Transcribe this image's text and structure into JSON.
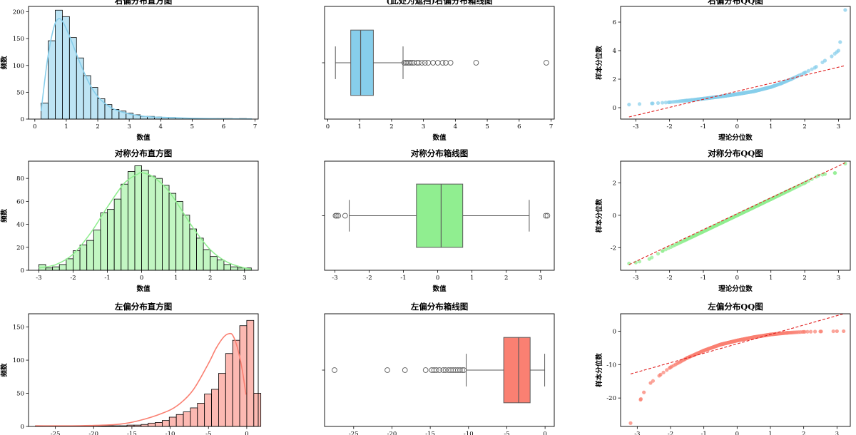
{
  "chart_data": [
    {
      "type": "histogram",
      "title": "右偏分布直方图",
      "xlabel": "数值",
      "ylabel": "频数",
      "xlim": [
        -0.2,
        7.1
      ],
      "ylim": [
        0,
        210
      ],
      "xticks": [
        0,
        1,
        2,
        3,
        4,
        5,
        6,
        7
      ],
      "yticks": [
        0,
        50,
        100,
        150,
        200
      ],
      "bin_start": 0.2,
      "bin_width": 0.225,
      "counts": [
        30,
        146,
        203,
        191,
        152,
        114,
        81,
        59,
        38,
        27,
        18,
        15,
        11,
        8,
        5,
        5,
        4,
        3,
        3,
        2,
        2,
        1,
        1,
        1,
        1,
        1,
        1,
        0,
        1,
        0
      ],
      "kde": [
        [
          0.2,
          15
        ],
        [
          0.4,
          110
        ],
        [
          0.6,
          170
        ],
        [
          0.75,
          187
        ],
        [
          0.9,
          180
        ],
        [
          1.1,
          155
        ],
        [
          1.4,
          110
        ],
        [
          1.7,
          70
        ],
        [
          2.0,
          42
        ],
        [
          2.4,
          22
        ],
        [
          2.9,
          11
        ],
        [
          3.5,
          5
        ],
        [
          4.2,
          3
        ],
        [
          5.0,
          1.5
        ],
        [
          6.0,
          0.5
        ],
        [
          6.9,
          0.3
        ]
      ],
      "color": "#87ceeb"
    },
    {
      "type": "boxplot",
      "title": "(此处为遮挡)右偏分布箱线图",
      "xlabel": "数值",
      "xlim": [
        -0.1,
        7.1
      ],
      "xticks": [
        0,
        1,
        2,
        3,
        4,
        5,
        6,
        7
      ],
      "whisker_low": 0.24,
      "q1": 0.72,
      "median": 1.03,
      "q3": 1.43,
      "whisker_high": 2.36,
      "outliers": [
        2.4,
        2.45,
        2.5,
        2.55,
        2.6,
        2.65,
        2.7,
        2.8,
        2.85,
        2.95,
        3.05,
        3.15,
        3.3,
        3.45,
        3.6,
        3.7,
        3.85,
        4.65,
        6.85
      ],
      "color": "#87ceeb"
    },
    {
      "type": "scatter",
      "title": "右偏分布QQ图",
      "xlabel": "理论分位数",
      "ylabel": "样本分位数",
      "xlim": [
        -3.45,
        3.35
      ],
      "ylim": [
        -0.8,
        7.1
      ],
      "xticks": [
        -3,
        -2,
        -1,
        0,
        1,
        2,
        3
      ],
      "yticks": [
        0,
        2,
        4,
        6
      ],
      "curve": [
        [
          -3.2,
          0.22
        ],
        [
          -2.5,
          0.3
        ],
        [
          -2.0,
          0.38
        ],
        [
          -1.5,
          0.5
        ],
        [
          -1.0,
          0.63
        ],
        [
          -0.5,
          0.78
        ],
        [
          0.0,
          0.95
        ],
        [
          0.5,
          1.15
        ],
        [
          1.0,
          1.45
        ],
        [
          1.3,
          1.7
        ],
        [
          1.6,
          2.0
        ],
        [
          2.0,
          2.45
        ],
        [
          2.3,
          2.8
        ],
        [
          2.6,
          3.3
        ],
        [
          2.8,
          3.6
        ],
        [
          2.95,
          3.9
        ],
        [
          3.0,
          4.0
        ],
        [
          3.05,
          4.6
        ],
        [
          3.2,
          6.85
        ]
      ],
      "reference_line": [
        [
          -3.2,
          -0.65
        ],
        [
          3.2,
          2.95
        ]
      ],
      "color": "#87ceeb"
    },
    {
      "type": "histogram",
      "title": "对称分布直方图",
      "xlabel": "数值",
      "ylabel": "频数",
      "xlim": [
        -3.3,
        3.4
      ],
      "ylim": [
        0,
        95
      ],
      "xticks": [
        -3,
        -2,
        -1,
        0,
        1,
        2,
        3
      ],
      "yticks": [
        0,
        20,
        40,
        60,
        80
      ],
      "bin_start": -3.0,
      "bin_width": 0.2,
      "counts": [
        5,
        2,
        3,
        5,
        10,
        17,
        22,
        26,
        35,
        50,
        53,
        62,
        75,
        86,
        91,
        87,
        82,
        80,
        74,
        67,
        60,
        48,
        36,
        28,
        18,
        12,
        9,
        5,
        3,
        2,
        2
      ],
      "kde": [
        [
          -3.0,
          2
        ],
        [
          -2.5,
          5
        ],
        [
          -2.0,
          14
        ],
        [
          -1.5,
          32
        ],
        [
          -1.0,
          55
        ],
        [
          -0.5,
          76
        ],
        [
          -0.1,
          84
        ],
        [
          0.0,
          85
        ],
        [
          0.3,
          82
        ],
        [
          0.7,
          72
        ],
        [
          1.0,
          60
        ],
        [
          1.5,
          37
        ],
        [
          2.0,
          18
        ],
        [
          2.5,
          7
        ],
        [
          3.0,
          2
        ],
        [
          3.2,
          1
        ]
      ],
      "color": "#90ee90"
    },
    {
      "type": "boxplot",
      "title": "对称分布箱线图",
      "xlabel": "数值",
      "xlim": [
        -3.3,
        3.4
      ],
      "xticks": [
        -3,
        -2,
        -1,
        0,
        1,
        2,
        3
      ],
      "whisker_low": -2.58,
      "q1": -0.62,
      "median": 0.1,
      "q3": 0.73,
      "whisker_high": 2.67,
      "outliers": [
        -2.98,
        -2.95,
        -2.9,
        -2.7,
        3.15,
        3.2
      ],
      "color": "#90ee90"
    },
    {
      "type": "scatter",
      "title": "对称分布QQ图",
      "xlabel": "理论分位数",
      "ylabel": "样本分位数",
      "xlim": [
        -3.45,
        3.35
      ],
      "ylim": [
        -3.4,
        3.35
      ],
      "xticks": [
        -3,
        -2,
        -1,
        0,
        1,
        2,
        3
      ],
      "yticks": [
        -2,
        0,
        2
      ],
      "curve": [
        [
          -3.2,
          -2.98
        ],
        [
          -3.0,
          -2.92
        ],
        [
          -2.6,
          -2.7
        ],
        [
          -2.2,
          -2.2
        ],
        [
          -1.5,
          -1.5
        ],
        [
          -1.0,
          -1.0
        ],
        [
          0.0,
          0.0
        ],
        [
          1.0,
          1.0
        ],
        [
          1.5,
          1.5
        ],
        [
          2.0,
          2.0
        ],
        [
          2.4,
          2.45
        ],
        [
          2.6,
          2.55
        ],
        [
          2.9,
          2.62
        ],
        [
          3.2,
          3.2
        ]
      ],
      "reference_line": [
        [
          -3.2,
          -3.05
        ],
        [
          3.2,
          3.25
        ]
      ],
      "color": "#90ee90"
    },
    {
      "type": "histogram",
      "title": "左偏分布直方图",
      "xlabel": "",
      "ylabel": "频数",
      "xlim": [
        -28.5,
        1.5
      ],
      "ylim": [
        0,
        170
      ],
      "xticks": [
        -25,
        -20,
        -15,
        -10,
        -5,
        0
      ],
      "yticks": [
        0,
        50,
        100,
        150
      ],
      "bin_start": -27.6,
      "bin_width": 0.92,
      "counts": [
        1,
        1,
        1,
        1,
        1,
        1,
        1,
        1,
        1,
        1,
        1,
        1,
        1,
        2,
        2,
        3,
        5,
        6,
        9,
        14,
        18,
        22,
        28,
        35,
        49,
        56,
        80,
        110,
        130,
        152,
        160,
        50
      ],
      "kde": [
        [
          -27.6,
          1
        ],
        [
          -22,
          1
        ],
        [
          -17,
          3
        ],
        [
          -14,
          9
        ],
        [
          -11,
          20
        ],
        [
          -9,
          32
        ],
        [
          -7,
          55
        ],
        [
          -5,
          95
        ],
        [
          -4,
          118
        ],
        [
          -3,
          135
        ],
        [
          -2.3,
          140
        ],
        [
          -1.8,
          137
        ],
        [
          -1.2,
          118
        ],
        [
          -0.6,
          86
        ],
        [
          -0.1,
          48
        ]
      ],
      "color": "#fa8072"
    },
    {
      "type": "boxplot",
      "title": "左偏分布箱线图",
      "xlabel": "",
      "xlim": [
        -28.8,
        1.2
      ],
      "xticks": [
        -25,
        -20,
        -15,
        -10,
        -5,
        0
      ],
      "whisker_low": -10.3,
      "q1": -5.4,
      "median": -3.45,
      "q3": -1.95,
      "whisker_high": -0.05,
      "outliers": [
        -27.5,
        -20.6,
        -18.3,
        -15.6,
        -14.8,
        -14.5,
        -14.2,
        -13.8,
        -13.3,
        -13.0,
        -12.6,
        -12.3,
        -12.0,
        -11.7,
        -11.4,
        -11.1,
        -10.8,
        -10.6
      ],
      "color": "#fa8072"
    },
    {
      "type": "scatter",
      "title": "左偏分布QQ图",
      "xlabel": "",
      "ylabel": "样本分位数",
      "xlim": [
        -3.5,
        3.4
      ],
      "ylim": [
        -28.5,
        5.2
      ],
      "xticks": [
        -3,
        -2,
        -1,
        0,
        1,
        2,
        3
      ],
      "yticks": [
        -20,
        -10,
        0
      ],
      "curve": [
        [
          -3.2,
          -27.5
        ],
        [
          -2.9,
          -20.5
        ],
        [
          -2.8,
          -18.3
        ],
        [
          -2.6,
          -15.5
        ],
        [
          -2.3,
          -13.0
        ],
        [
          -2.0,
          -10.8
        ],
        [
          -1.5,
          -8.0
        ],
        [
          -1.0,
          -5.8
        ],
        [
          -0.5,
          -4.0
        ],
        [
          0.0,
          -2.8
        ],
        [
          0.5,
          -1.8
        ],
        [
          1.0,
          -1.0
        ],
        [
          1.5,
          -0.5
        ],
        [
          2.0,
          -0.2
        ],
        [
          2.5,
          -0.1
        ],
        [
          3.0,
          -0.02
        ],
        [
          3.2,
          -0.01
        ]
      ],
      "reference_line": [
        [
          -3.2,
          -12.8
        ],
        [
          3.2,
          5.2
        ]
      ],
      "color": "#fa8072"
    }
  ]
}
